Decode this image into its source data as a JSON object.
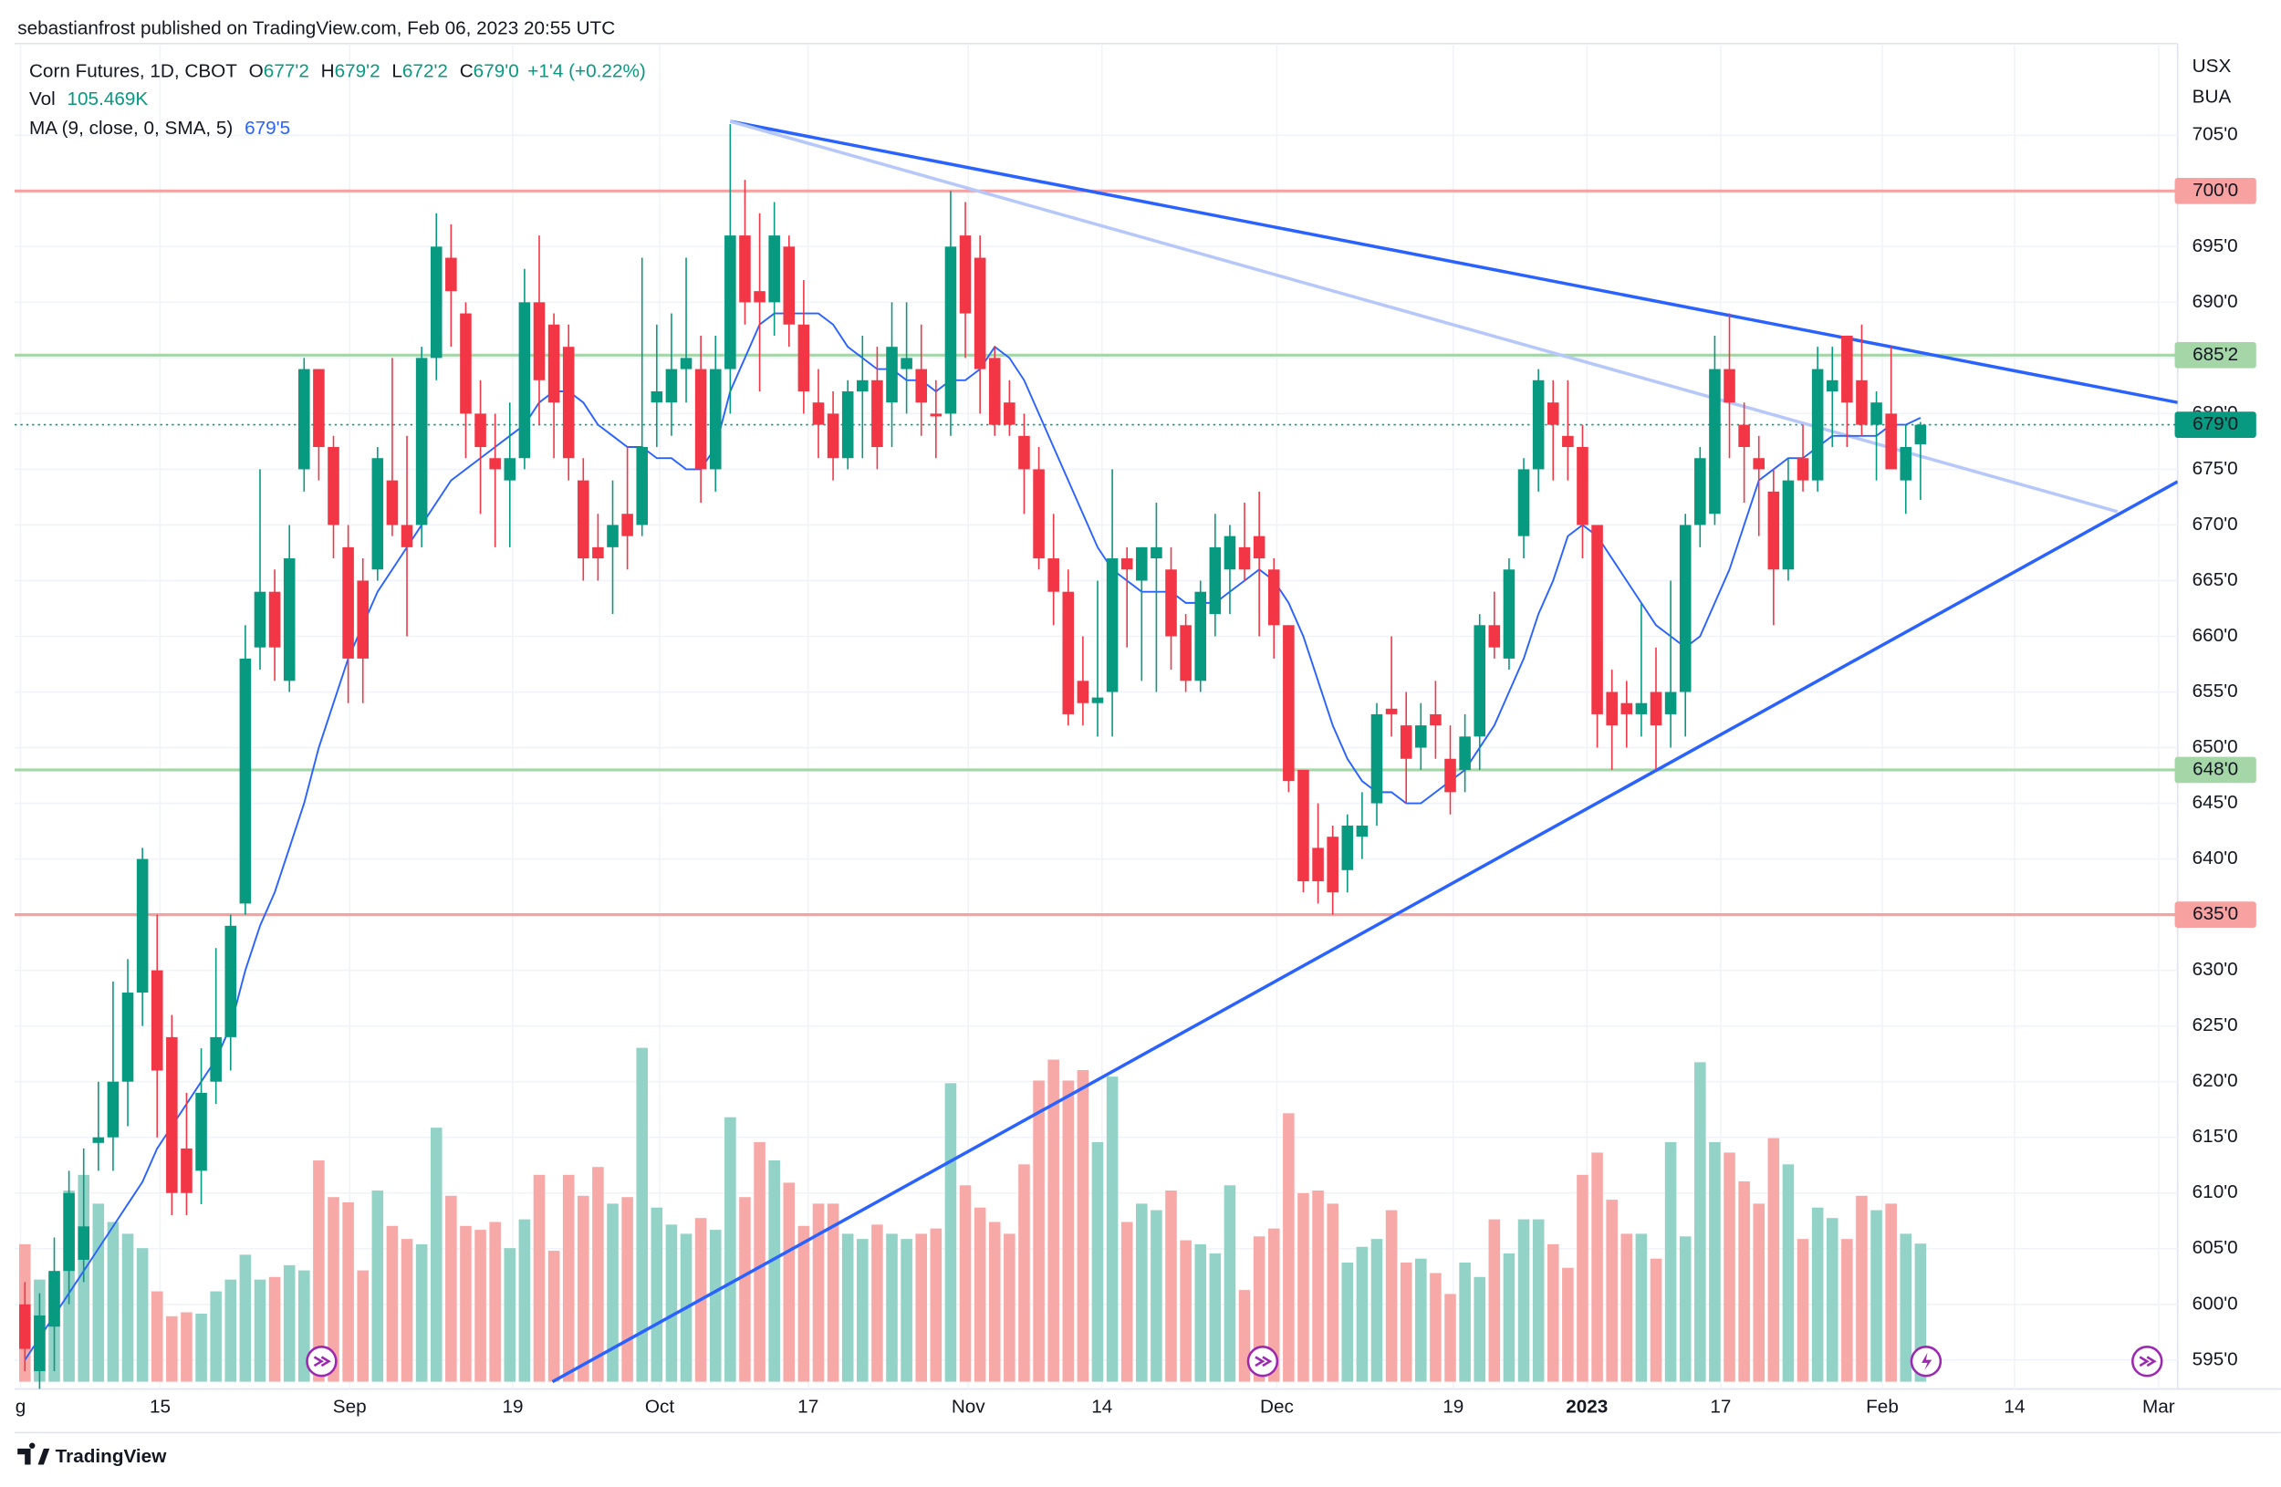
{
  "chart_data": {
    "type": "candlestick",
    "publisher": "sebastianfrost published on TradingView.com, Feb 06, 2023 20:55 UTC",
    "symbol": "Corn Futures, 1D, CBOT",
    "ohlc_legend": [
      {
        "key": "O",
        "value": "677'2"
      },
      {
        "key": "H",
        "value": "679'2"
      },
      {
        "key": "L",
        "value": "672'2"
      },
      {
        "key": "C",
        "value": "679'0"
      }
    ],
    "change": "+1'4 (+0.22%)",
    "vol_label": "Vol",
    "vol_value": "105.469K",
    "ma_label": "MA (9, close, 0, SMA, 5)",
    "ma_value": "679'5",
    "currency": "USX",
    "unit": "BUA",
    "brand": "TradingView",
    "up_color": "#089981",
    "down_color": "#f23645",
    "up_volume_color": "#92d2c7",
    "down_volume_color": "#f7a9a8",
    "ma_color": "#2962ff",
    "grid": true,
    "xlim": [
      -0.7,
      146.5
    ],
    "ylim": [
      592.4,
      713.23
    ],
    "vlim": [
      0,
      1022
    ],
    "xticks": [
      {
        "value": -0.3,
        "label": "g"
      },
      {
        "value": 9.2,
        "label": "15"
      },
      {
        "value": 22.1,
        "label": "Sep"
      },
      {
        "value": 33.2,
        "label": "19"
      },
      {
        "value": 43.2,
        "label": "Oct"
      },
      {
        "value": 53.3,
        "label": "17"
      },
      {
        "value": 64.2,
        "label": "Nov"
      },
      {
        "value": 73.3,
        "label": "14"
      },
      {
        "value": 85.2,
        "label": "Dec"
      },
      {
        "value": 97.2,
        "label": "19"
      },
      {
        "value": 106.3,
        "label": "2023"
      },
      {
        "value": 115.4,
        "label": "17"
      },
      {
        "value": 126.4,
        "label": "Feb"
      },
      {
        "value": 135.4,
        "label": "14"
      },
      {
        "value": 145.2,
        "label": "Mar"
      }
    ],
    "yticks": [
      {
        "value": 595,
        "label": "595'0"
      },
      {
        "value": 600,
        "label": "600'0"
      },
      {
        "value": 605,
        "label": "605'0"
      },
      {
        "value": 610,
        "label": "610'0"
      },
      {
        "value": 615,
        "label": "615'0"
      },
      {
        "value": 620,
        "label": "620'0"
      },
      {
        "value": 625,
        "label": "625'0"
      },
      {
        "value": 630,
        "label": "630'0"
      },
      {
        "value": 635,
        "label": "635'0"
      },
      {
        "value": 640,
        "label": "640'0"
      },
      {
        "value": 645,
        "label": "645'0"
      },
      {
        "value": 650,
        "label": "650'0"
      },
      {
        "value": 655,
        "label": "655'0"
      },
      {
        "value": 660,
        "label": "660'0"
      },
      {
        "value": 665,
        "label": "665'0"
      },
      {
        "value": 670,
        "label": "670'0"
      },
      {
        "value": 675,
        "label": "675'0"
      },
      {
        "value": 680,
        "label": "680'0"
      },
      {
        "value": 685,
        "label": "685'0"
      },
      {
        "value": 690,
        "label": "690'0"
      },
      {
        "value": 695,
        "label": "695'0"
      },
      {
        "value": 700,
        "label": "700'0"
      },
      {
        "value": 705,
        "label": "705'0"
      }
    ],
    "levels": [
      {
        "value": 700,
        "label": "700'0",
        "color": "#f7a1a1",
        "text_color": "#131722"
      },
      {
        "value": 685.25,
        "label": "685'2",
        "color": "#a5d6a7",
        "text_color": "#131722"
      },
      {
        "value": 648,
        "label": "648'0",
        "color": "#a5d6a7",
        "text_color": "#131722"
      },
      {
        "value": 635,
        "label": "635'0",
        "color": "#f7a1a1",
        "text_color": "#131722"
      }
    ],
    "last_price": {
      "value": 679,
      "label": "679'0",
      "color": "#089981",
      "text_color": "#ffffff"
    },
    "trendlines": [
      {
        "x": [
          48,
          146.5
        ],
        "y": [
          706.25,
          681
        ],
        "color": "#2962ff"
      },
      {
        "x": [
          48,
          142.4
        ],
        "y": [
          706.25,
          671.2
        ],
        "color": "#b6c7fa"
      },
      {
        "x": [
          35.9,
          146.5
        ],
        "y": [
          593.05,
          673.9
        ],
        "color": "#2962ff"
      }
    ],
    "open": [
      600,
      594,
      598,
      603,
      604,
      614.5,
      615,
      620,
      628,
      630,
      624,
      614,
      612,
      620,
      624,
      636,
      659,
      664,
      656,
      675,
      684,
      677,
      668,
      665,
      666,
      674,
      670,
      670,
      685,
      694,
      689,
      680,
      676,
      674,
      676,
      690,
      688,
      686,
      674,
      668,
      668,
      671,
      670,
      681,
      681,
      684,
      684,
      675,
      684,
      696,
      691,
      690,
      695,
      688,
      681,
      680,
      676,
      682,
      683,
      681,
      684,
      684,
      680,
      680,
      696,
      694,
      685,
      681,
      678,
      675,
      667,
      664,
      656,
      654,
      655,
      667,
      665,
      667,
      666,
      661,
      656,
      662,
      666,
      668,
      669,
      666,
      661,
      648,
      641,
      642,
      639,
      642,
      645,
      653.5,
      652,
      650,
      653,
      649,
      648,
      651,
      661,
      658,
      669,
      675,
      681,
      678,
      677,
      670,
      655,
      654,
      653,
      655,
      653,
      655,
      670,
      671,
      684,
      679,
      676,
      673,
      666,
      676,
      674,
      682,
      687,
      683,
      679,
      680,
      674,
      677.25
    ],
    "high": [
      602,
      601,
      606,
      612,
      614,
      620,
      629,
      631,
      641,
      635,
      626,
      619,
      623,
      632,
      635,
      661,
      675,
      666,
      670,
      685,
      684,
      678,
      670,
      667,
      677,
      685,
      678,
      686,
      698,
      697,
      690,
      683,
      680,
      681,
      693,
      696,
      689,
      688,
      676,
      671,
      674,
      677,
      694,
      688,
      689,
      694,
      687,
      687,
      706,
      701,
      698,
      699,
      696,
      692,
      684,
      682,
      683,
      687,
      686,
      690,
      690,
      688,
      683,
      700,
      699,
      696,
      686,
      683,
      680,
      677,
      671,
      666,
      660,
      665,
      675,
      668,
      668,
      672,
      668,
      662,
      665,
      671,
      670,
      672,
      673,
      667,
      661,
      648,
      645,
      643,
      644,
      646,
      654,
      660,
      655,
      654,
      656,
      652,
      653,
      662,
      664,
      667,
      676,
      684,
      683,
      683,
      679,
      670,
      657,
      656,
      663,
      659,
      665,
      671,
      677,
      687,
      689,
      681,
      678,
      675,
      676,
      679,
      686,
      686,
      687,
      688,
      682,
      686,
      679,
      679.25
    ],
    "low": [
      594,
      591,
      594,
      600,
      602,
      612,
      612,
      616,
      625,
      615,
      608,
      608,
      609,
      618,
      621,
      635,
      657,
      656,
      655,
      673,
      674,
      667,
      654,
      654,
      665,
      669,
      660,
      668,
      683,
      686,
      676,
      671,
      668,
      668,
      675,
      679,
      676,
      674,
      665,
      665,
      662,
      666,
      669,
      677,
      678,
      681,
      672,
      673,
      680,
      688,
      682,
      687,
      686,
      680,
      676,
      674,
      675,
      676,
      675,
      677,
      680,
      678,
      676,
      678,
      685,
      680,
      678,
      678,
      671,
      666,
      661,
      652,
      652,
      651,
      651,
      659,
      656,
      655,
      657,
      655,
      655,
      660,
      662,
      665,
      660,
      658,
      646,
      637,
      636,
      635,
      637,
      640,
      643,
      651,
      645,
      648,
      649,
      644,
      646,
      648,
      658,
      657,
      667,
      673,
      674,
      674,
      667,
      650,
      648,
      650,
      651,
      648,
      650,
      651,
      668,
      670,
      676,
      672,
      669,
      661,
      665,
      673,
      673,
      677,
      677,
      678,
      674,
      675,
      671,
      672.25
    ],
    "close": [
      596,
      599,
      603,
      610,
      607,
      615,
      620,
      628,
      640,
      621,
      610,
      610,
      619,
      624,
      634,
      658,
      664,
      659,
      667,
      684,
      677,
      670,
      658,
      658,
      676,
      670,
      668,
      685,
      695,
      691,
      680,
      677,
      675,
      676,
      690,
      683,
      681,
      676,
      667,
      667,
      670,
      669,
      677,
      682,
      684,
      685,
      675,
      684,
      696,
      690,
      690,
      696,
      688,
      682,
      679,
      676,
      682,
      683,
      677,
      686,
      685,
      681,
      679.75,
      695,
      689,
      684,
      679,
      679,
      675,
      667,
      664,
      653,
      654,
      654.5,
      667,
      666,
      668,
      668,
      660,
      656,
      664,
      668,
      669,
      666,
      667,
      661,
      647,
      638,
      638,
      637,
      643,
      643,
      653,
      653,
      649,
      652,
      652,
      646,
      651,
      661,
      659,
      666,
      675,
      683,
      679,
      677,
      670,
      653,
      652,
      653,
      654,
      652,
      655,
      670,
      676,
      684,
      681,
      677,
      675,
      666,
      674,
      674,
      684,
      683,
      681,
      679,
      681,
      675,
      677,
      679
    ],
    "volume": [
      105,
      78,
      83,
      146,
      158,
      136,
      122,
      113,
      102,
      69,
      50,
      53,
      52,
      69,
      78,
      97,
      78,
      80,
      89,
      85,
      169,
      141,
      137,
      85,
      146,
      119,
      109,
      105,
      194,
      142,
      119,
      116,
      122,
      102,
      124,
      158,
      100,
      158,
      142,
      164,
      136,
      141,
      255,
      133,
      120,
      113,
      125,
      116,
      202,
      141,
      183,
      169,
      152,
      119,
      136,
      136,
      113,
      109,
      120,
      113,
      109,
      113,
      117,
      228,
      150,
      133,
      122,
      113,
      166,
      230,
      246,
      230,
      238,
      183,
      233,
      122,
      136,
      131,
      146,
      108,
      105,
      98,
      150,
      70,
      111,
      117,
      205,
      144,
      146,
      136,
      91,
      103,
      109,
      131,
      91,
      94,
      83,
      67,
      91,
      80,
      124,
      98,
      124,
      124,
      105,
      87,
      158,
      175,
      139,
      113,
      113,
      94,
      183,
      111,
      244,
      183,
      175,
      153,
      136,
      186,
      166,
      109,
      133,
      125,
      109,
      142,
      131,
      136,
      113,
      105.469
    ],
    "ma": [
      595,
      597,
      599,
      601,
      603,
      605,
      607,
      609,
      611,
      614,
      616,
      618,
      620,
      622,
      625,
      630,
      634,
      637,
      641,
      645,
      650,
      654,
      658,
      661,
      664,
      666,
      668,
      670,
      672,
      674,
      675,
      676,
      677,
      678,
      679,
      681,
      682,
      682,
      681,
      679,
      678,
      677,
      677,
      676,
      676,
      675,
      675,
      677,
      682,
      685,
      688,
      689,
      689,
      689,
      689,
      688,
      686,
      685,
      684,
      684,
      683,
      683,
      682,
      683,
      683,
      684,
      686,
      685,
      683,
      680,
      677,
      674,
      671,
      668,
      666,
      665,
      664,
      664,
      664,
      663,
      663,
      663,
      664,
      665,
      666,
      665,
      663,
      660,
      656,
      652,
      649,
      647,
      646,
      646,
      645,
      645,
      646,
      647,
      648,
      650,
      652,
      655,
      658,
      662,
      665,
      669,
      670,
      669,
      667,
      665,
      663,
      661,
      660,
      659,
      660,
      663,
      666,
      670,
      674,
      675,
      676,
      676,
      677,
      678,
      678,
      678,
      678,
      679,
      679,
      679.625
    ]
  }
}
